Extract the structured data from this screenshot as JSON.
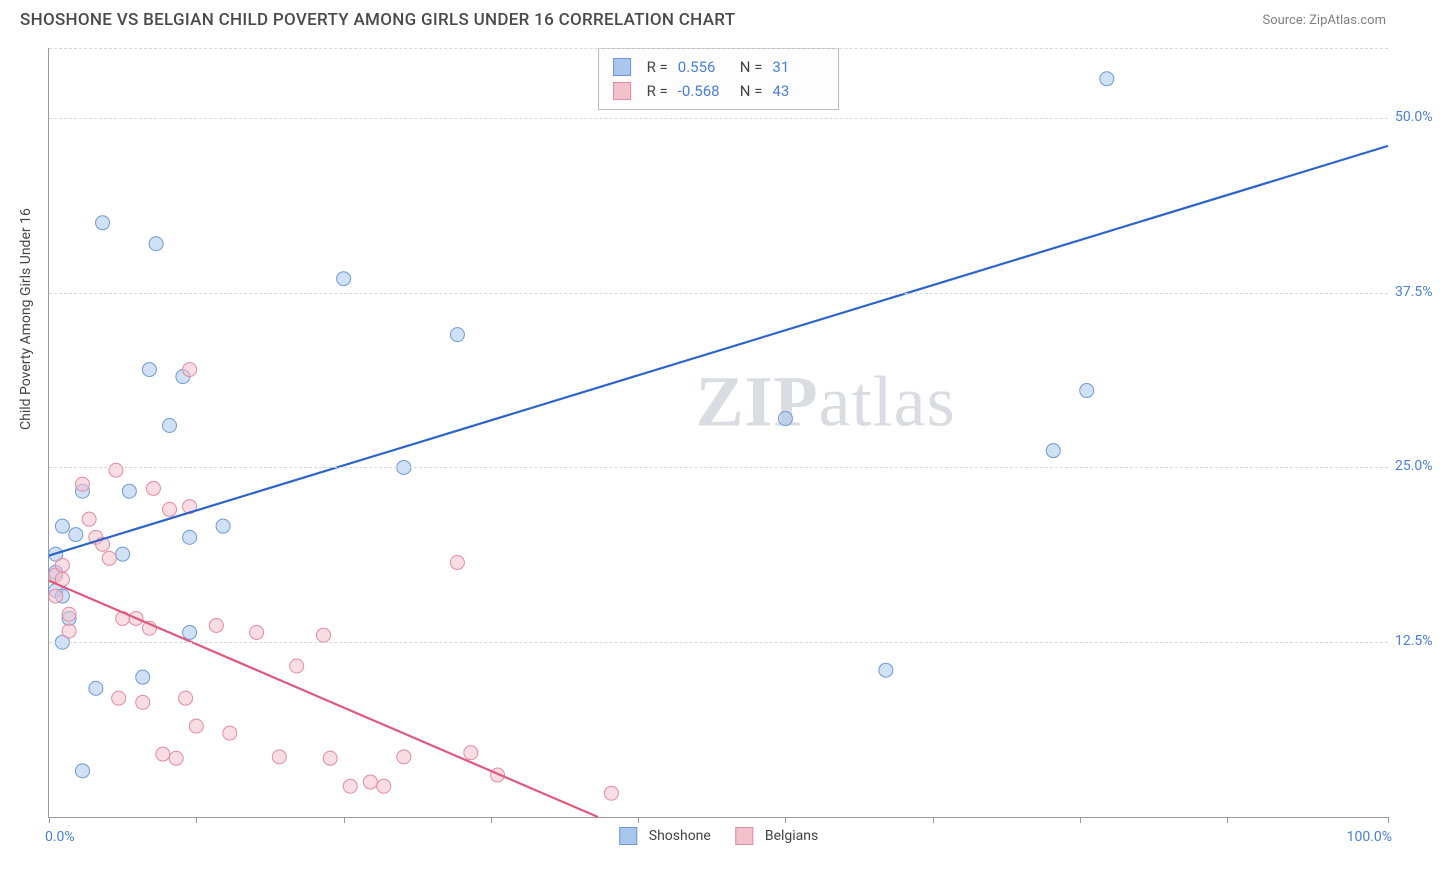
{
  "header": {
    "title": "SHOSHONE VS BELGIAN CHILD POVERTY AMONG GIRLS UNDER 16 CORRELATION CHART",
    "source": "Source: ZipAtlas.com"
  },
  "ylabel": "Child Poverty Among Girls Under 16",
  "watermark": {
    "bold": "ZIP",
    "rest": "atlas"
  },
  "chart": {
    "type": "scatter",
    "xlim": [
      0,
      100
    ],
    "ylim": [
      0,
      55
    ],
    "y_ticks": [
      {
        "v": 12.5,
        "label": "12.5%"
      },
      {
        "v": 25.0,
        "label": "25.0%"
      },
      {
        "v": 37.5,
        "label": "37.5%"
      },
      {
        "v": 50.0,
        "label": "50.0%"
      }
    ],
    "x_tick_positions": [
      0,
      11,
      22,
      33,
      44,
      55,
      66,
      77,
      88,
      100
    ],
    "x_end_labels": {
      "min": "0.0%",
      "max": "100.0%"
    },
    "background_color": "#ffffff",
    "grid_color": "#d8d8d8",
    "marker_radius": 7,
    "marker_opacity": 0.55,
    "line_width": 2.2,
    "series": [
      {
        "name": "Shoshone",
        "color_fill": "#a9c6ec",
        "color_stroke": "#6d9ad6",
        "line_color": "#2e64c9",
        "regression": {
          "x1": 0,
          "y1": 18.7,
          "x2": 100,
          "y2": 48.0
        },
        "correlation": {
          "R": "0.556",
          "N": "31"
        },
        "points": [
          [
            0.5,
            17.5
          ],
          [
            0.5,
            16.2
          ],
          [
            0.5,
            18.8
          ],
          [
            1.0,
            20.8
          ],
          [
            1.0,
            15.8
          ],
          [
            1.0,
            12.5
          ],
          [
            1.5,
            14.2
          ],
          [
            2.0,
            20.2
          ],
          [
            2.5,
            23.3
          ],
          [
            2.5,
            3.3
          ],
          [
            3.5,
            9.2
          ],
          [
            4.0,
            42.5
          ],
          [
            5.5,
            18.8
          ],
          [
            6.0,
            23.3
          ],
          [
            7.0,
            10.0
          ],
          [
            7.5,
            32.0
          ],
          [
            8.0,
            41.0
          ],
          [
            9.0,
            28.0
          ],
          [
            10.5,
            13.2
          ],
          [
            10.5,
            20.0
          ],
          [
            10.0,
            31.5
          ],
          [
            13.0,
            20.8
          ],
          [
            22.0,
            38.5
          ],
          [
            26.5,
            25.0
          ],
          [
            30.5,
            34.5
          ],
          [
            55.0,
            28.5
          ],
          [
            62.5,
            10.5
          ],
          [
            75.0,
            26.2
          ],
          [
            77.5,
            30.5
          ],
          [
            79.0,
            52.8
          ]
        ]
      },
      {
        "name": "Belgians",
        "color_fill": "#f3c1cc",
        "color_stroke": "#e48ba1",
        "line_color": "#de5a7d",
        "regression": {
          "x1": 0,
          "y1": 16.9,
          "x2": 41,
          "y2": 0
        },
        "correlation": {
          "R": "-0.568",
          "N": "43"
        },
        "points": [
          [
            0.5,
            17.3
          ],
          [
            0.5,
            15.8
          ],
          [
            1.0,
            17.0
          ],
          [
            1.0,
            18.0
          ],
          [
            1.5,
            13.3
          ],
          [
            1.5,
            14.5
          ],
          [
            2.5,
            23.8
          ],
          [
            3.0,
            21.3
          ],
          [
            3.5,
            20.0
          ],
          [
            4.0,
            19.5
          ],
          [
            4.5,
            18.5
          ],
          [
            5.0,
            24.8
          ],
          [
            5.2,
            8.5
          ],
          [
            5.5,
            14.2
          ],
          [
            6.5,
            14.2
          ],
          [
            7.0,
            8.2
          ],
          [
            7.5,
            13.5
          ],
          [
            7.8,
            23.5
          ],
          [
            8.5,
            4.5
          ],
          [
            9.0,
            22.0
          ],
          [
            9.5,
            4.2
          ],
          [
            10.5,
            32.0
          ],
          [
            10.2,
            8.5
          ],
          [
            10.5,
            22.2
          ],
          [
            11.0,
            6.5
          ],
          [
            12.5,
            13.7
          ],
          [
            13.5,
            6.0
          ],
          [
            15.5,
            13.2
          ],
          [
            17.2,
            4.3
          ],
          [
            18.5,
            10.8
          ],
          [
            20.5,
            13.0
          ],
          [
            21.0,
            4.2
          ],
          [
            22.5,
            2.2
          ],
          [
            24.0,
            2.5
          ],
          [
            25.0,
            2.2
          ],
          [
            26.5,
            4.3
          ],
          [
            30.5,
            18.2
          ],
          [
            31.5,
            4.6
          ],
          [
            33.5,
            3.0
          ],
          [
            42.0,
            1.7
          ]
        ]
      }
    ]
  },
  "legend": {
    "series1": "Shoshone",
    "series2": "Belgians"
  }
}
